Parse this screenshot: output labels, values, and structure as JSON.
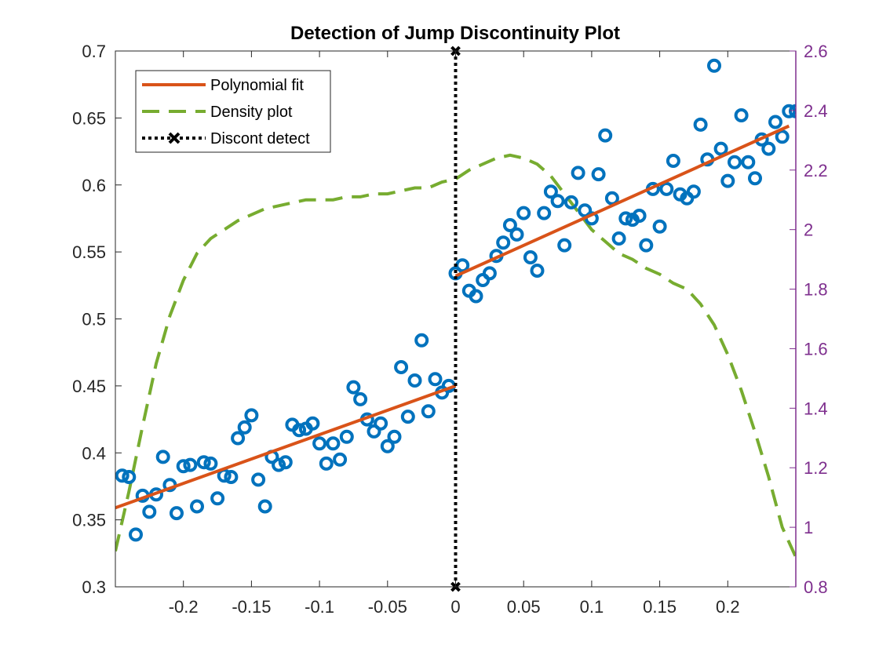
{
  "chart_data": {
    "type": "scatter",
    "title": "Detection of Jump Discontinuity Plot",
    "xlabel": "",
    "ylabel": "",
    "xlim": [
      -0.25,
      0.25
    ],
    "ylim": [
      0.3,
      0.7
    ],
    "y2lim": [
      0.8,
      2.6
    ],
    "x_ticks": [
      -0.2,
      -0.15,
      -0.1,
      -0.05,
      0,
      0.05,
      0.1,
      0.15,
      0.2
    ],
    "x_tick_labels": [
      "-0.2",
      "-0.15",
      "-0.1",
      "-0.05",
      "0",
      "0.05",
      "0.1",
      "0.15",
      "0.2"
    ],
    "y_ticks": [
      0.3,
      0.35,
      0.4,
      0.45,
      0.5,
      0.55,
      0.6,
      0.65,
      0.7
    ],
    "y_tick_labels": [
      "0.3",
      "0.35",
      "0.4",
      "0.45",
      "0.5",
      "0.55",
      "0.6",
      "0.65",
      "0.7"
    ],
    "y2_ticks": [
      0.8,
      1.0,
      1.2,
      1.4,
      1.6,
      1.8,
      2.0,
      2.2,
      2.4,
      2.6
    ],
    "y2_tick_labels": [
      "0.8",
      "1",
      "1.2",
      "1.4",
      "1.6",
      "1.8",
      "2",
      "2.2",
      "2.4",
      "2.6"
    ],
    "grid": false,
    "legend_position": "top-left",
    "colors": {
      "scatter": "#0072BD",
      "fit": "#D95319",
      "density": "#77AC30",
      "discont": "#000000",
      "right_axis": "#7E2F8E",
      "axis": "#262626"
    },
    "series": [
      {
        "type": "scatter",
        "x": [
          -0.245,
          -0.24,
          -0.235,
          -0.23,
          -0.225,
          -0.22,
          -0.215,
          -0.21,
          -0.205,
          -0.2,
          -0.195,
          -0.19,
          -0.185,
          -0.18,
          -0.175,
          -0.17,
          -0.165,
          -0.16,
          -0.155,
          -0.15,
          -0.145,
          -0.14,
          -0.135,
          -0.13,
          -0.125,
          -0.12,
          -0.115,
          -0.11,
          -0.105,
          -0.1,
          -0.095,
          -0.09,
          -0.085,
          -0.08,
          -0.075,
          -0.07,
          -0.065,
          -0.06,
          -0.055,
          -0.05,
          -0.045,
          -0.04,
          -0.035,
          -0.03,
          -0.025,
          -0.02,
          -0.015,
          -0.01,
          -0.005,
          0.0,
          0.005,
          0.01,
          0.015,
          0.02,
          0.025,
          0.03,
          0.035,
          0.04,
          0.045,
          0.05,
          0.055,
          0.06,
          0.065,
          0.07,
          0.075,
          0.08,
          0.085,
          0.09,
          0.095,
          0.1,
          0.105,
          0.11,
          0.115,
          0.12,
          0.125,
          0.13,
          0.135,
          0.14,
          0.145,
          0.15,
          0.155,
          0.16,
          0.165,
          0.17,
          0.175,
          0.18,
          0.185,
          0.19,
          0.195,
          0.2,
          0.205,
          0.21,
          0.215,
          0.22,
          0.225,
          0.23,
          0.235,
          0.24,
          0.245,
          0.25
        ],
        "y": [
          0.383,
          0.382,
          0.339,
          0.368,
          0.356,
          0.369,
          0.397,
          0.376,
          0.355,
          0.39,
          0.391,
          0.36,
          0.393,
          0.392,
          0.366,
          0.383,
          0.382,
          0.411,
          0.419,
          0.428,
          0.38,
          0.36,
          0.397,
          0.391,
          0.393,
          0.421,
          0.417,
          0.418,
          0.422,
          0.407,
          0.392,
          0.407,
          0.395,
          0.412,
          0.449,
          0.44,
          0.425,
          0.416,
          0.422,
          0.405,
          0.412,
          0.464,
          0.427,
          0.454,
          0.484,
          0.431,
          0.455,
          0.445,
          0.45,
          0.534,
          0.54,
          0.521,
          0.517,
          0.529,
          0.534,
          0.547,
          0.557,
          0.57,
          0.563,
          0.579,
          0.546,
          0.536,
          0.579,
          0.595,
          0.588,
          0.555,
          0.587,
          0.609,
          0.581,
          0.575,
          0.608,
          0.637,
          0.59,
          0.56,
          0.575,
          0.574,
          0.577,
          0.555,
          0.597,
          0.569,
          0.597,
          0.618,
          0.593,
          0.59,
          0.595,
          0.645,
          0.619,
          0.689,
          0.627,
          0.603,
          0.617,
          0.652,
          0.617,
          0.605,
          0.634,
          0.627,
          0.647,
          0.636,
          0.655,
          0.655
        ]
      },
      {
        "name": "Polynomial fit",
        "type": "line",
        "segments": [
          {
            "x": [
              -0.25,
              0.0
            ],
            "y": [
              0.359,
              0.45
            ]
          },
          {
            "x": [
              0.0,
              0.245
            ],
            "y": [
              0.532,
              0.644
            ]
          }
        ]
      },
      {
        "name": "Density plot",
        "type": "line",
        "axis": "right",
        "x": [
          -0.25,
          -0.24,
          -0.23,
          -0.22,
          -0.21,
          -0.2,
          -0.19,
          -0.18,
          -0.17,
          -0.16,
          -0.15,
          -0.14,
          -0.13,
          -0.12,
          -0.11,
          -0.1,
          -0.09,
          -0.08,
          -0.07,
          -0.06,
          -0.05,
          -0.04,
          -0.03,
          -0.02,
          -0.01,
          0.0,
          0.01,
          0.02,
          0.03,
          0.04,
          0.05,
          0.06,
          0.07,
          0.08,
          0.09,
          0.1,
          0.11,
          0.12,
          0.13,
          0.14,
          0.15,
          0.16,
          0.17,
          0.18,
          0.19,
          0.2,
          0.21,
          0.22,
          0.23,
          0.24,
          0.25
        ],
        "y": [
          0.92,
          1.12,
          1.34,
          1.55,
          1.71,
          1.83,
          1.92,
          1.97,
          2.0,
          2.03,
          2.05,
          2.07,
          2.08,
          2.09,
          2.1,
          2.1,
          2.1,
          2.11,
          2.11,
          2.12,
          2.12,
          2.13,
          2.14,
          2.14,
          2.16,
          2.17,
          2.2,
          2.22,
          2.24,
          2.25,
          2.24,
          2.22,
          2.18,
          2.12,
          2.06,
          2.0,
          1.96,
          1.92,
          1.9,
          1.87,
          1.85,
          1.82,
          1.8,
          1.75,
          1.68,
          1.58,
          1.46,
          1.32,
          1.17,
          1.0,
          0.9
        ]
      },
      {
        "name": "Discont detect",
        "type": "line",
        "x": [
          0.0,
          0.0
        ],
        "y": [
          0.3,
          0.7
        ]
      }
    ]
  }
}
